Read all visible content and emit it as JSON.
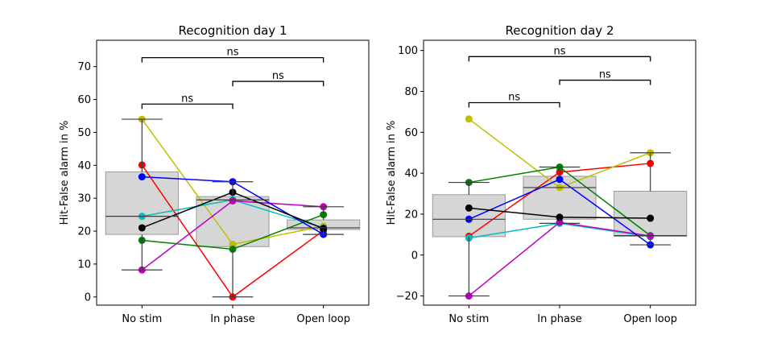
{
  "chart_data": [
    {
      "type": "box+line",
      "title": "Recognition day 1",
      "ylabel": "Hit-False alarm in %",
      "xlabel": "",
      "categories": [
        "No stim",
        "In phase",
        "Open loop"
      ],
      "ylim": [
        -2.5,
        78
      ],
      "yticks": [
        0,
        10,
        20,
        30,
        40,
        50,
        60,
        70
      ],
      "grid": false,
      "boxes": [
        {
          "q1": 19,
          "median": 24.5,
          "q3": 38,
          "whisker_low": 8.2,
          "whisker_high": 54
        },
        {
          "q1": 15.3,
          "median": 29.5,
          "q3": 30.5,
          "whisker_low": 0,
          "whisker_high": 35
        },
        {
          "q1": 20.5,
          "median": 21,
          "q3": 23.4,
          "whisker_low": 19,
          "whisker_high": 27.4
        }
      ],
      "series": [
        {
          "color": "#ff0000",
          "values": [
            40.1,
            0,
            20.2
          ]
        },
        {
          "color": "#bfbf00",
          "values": [
            54,
            16,
            21.5
          ]
        },
        {
          "color": "#00bfbf",
          "values": [
            24.5,
            29.5,
            21
          ]
        },
        {
          "color": "#008000",
          "values": [
            17.2,
            14.5,
            25
          ]
        },
        {
          "color": "#bf00bf",
          "values": [
            8.2,
            29.2,
            27.4
          ]
        },
        {
          "color": "#0000ff",
          "values": [
            36.5,
            35,
            19
          ]
        },
        {
          "color": "#000000",
          "values": [
            21,
            31.8,
            20.8
          ]
        }
      ],
      "annotations": [
        {
          "from": 0,
          "to": 1,
          "y": 58.6,
          "text": "ns"
        },
        {
          "from": 1,
          "to": 2,
          "y": 65.5,
          "text": "ns"
        },
        {
          "from": 0,
          "to": 2,
          "y": 72.7,
          "text": "ns"
        }
      ]
    },
    {
      "type": "box+line",
      "title": "Recognition day 2",
      "ylabel": "Hit-False alarm in %",
      "xlabel": "",
      "categories": [
        "No stim",
        "In phase",
        "Open loop"
      ],
      "ylim": [
        -24.5,
        105
      ],
      "yticks": [
        -20,
        0,
        20,
        40,
        60,
        80,
        100
      ],
      "grid": false,
      "boxes": [
        {
          "q1": 9,
          "median": 17.5,
          "q3": 29.5,
          "whisker_low": -20,
          "whisker_high": 35.5
        },
        {
          "q1": 17.5,
          "median": 33,
          "q3": 38.5,
          "whisker_low": 15.5,
          "whisker_high": 43
        },
        {
          "q1": 9.2,
          "median": 9.5,
          "q3": 31.2,
          "whisker_low": 5,
          "whisker_high": 50
        }
      ],
      "series": [
        {
          "color": "#ff0000",
          "values": [
            9.2,
            40.5,
            44.8
          ]
        },
        {
          "color": "#bfbf00",
          "values": [
            66.5,
            33,
            50
          ]
        },
        {
          "color": "#00bfbf",
          "values": [
            8.3,
            15.5,
            9
          ]
        },
        {
          "color": "#008000",
          "values": [
            35.5,
            43,
            9.5
          ]
        },
        {
          "color": "#bf00bf",
          "values": [
            -20,
            16,
            9.3
          ]
        },
        {
          "color": "#0000ff",
          "values": [
            17.5,
            37,
            5
          ]
        },
        {
          "color": "#000000",
          "values": [
            23,
            18.5,
            18
          ]
        }
      ],
      "annotations": [
        {
          "from": 0,
          "to": 1,
          "y": 74.5,
          "text": "ns"
        },
        {
          "from": 1,
          "to": 2,
          "y": 85.5,
          "text": "ns"
        },
        {
          "from": 0,
          "to": 2,
          "y": 97,
          "text": "ns"
        }
      ]
    }
  ]
}
